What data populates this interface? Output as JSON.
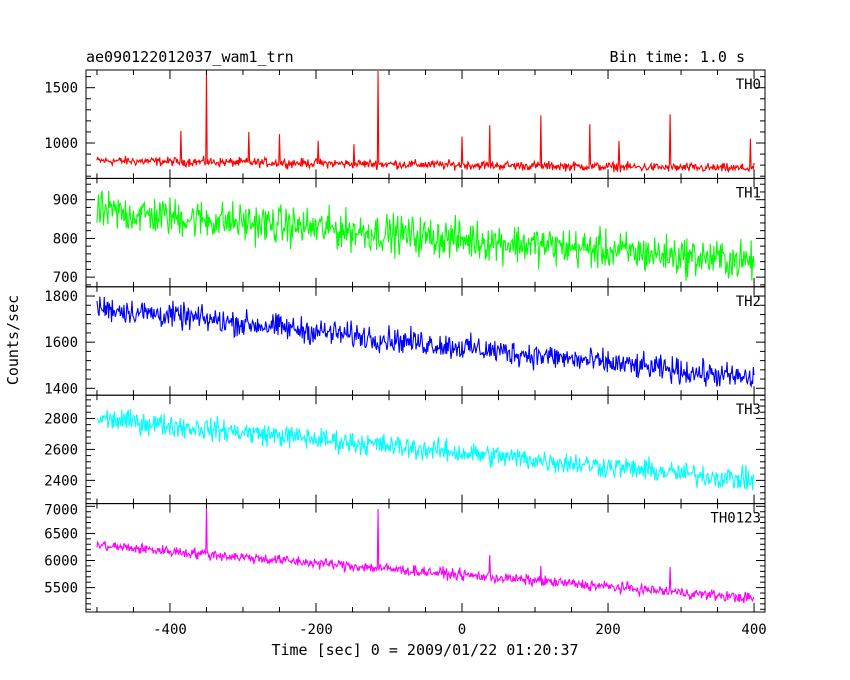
{
  "chart_data": {
    "type": "line",
    "title": "ae090122012037_wam1_trn",
    "subtitle": "Bin time: 1.0 s",
    "xlabel": "Time [sec] 0 = 2009/01/22 01:20:37",
    "ylabel": "Counts/sec",
    "xlim": [
      -515,
      415
    ],
    "xticks": [
      -400,
      -200,
      0,
      200,
      400
    ],
    "x_range_data": [
      -500,
      400
    ],
    "bin_time_s": 1.0,
    "panels": [
      {
        "name": "TH0",
        "color": "#ff0000",
        "ylim": [
          680,
          1660
        ],
        "yticks": [
          1000,
          1500
        ],
        "trend": {
          "x": [
            -500,
            400
          ],
          "y": [
            840,
            770
          ]
        },
        "noise_amplitude": 45,
        "spikes": [
          {
            "x": -350,
            "y": 1650
          },
          {
            "x": -385,
            "y": 1110
          },
          {
            "x": -292,
            "y": 1100
          },
          {
            "x": -250,
            "y": 1080
          },
          {
            "x": -197,
            "y": 1020
          },
          {
            "x": -148,
            "y": 990
          },
          {
            "x": -115,
            "y": 1650
          },
          {
            "x": 0,
            "y": 1060
          },
          {
            "x": 38,
            "y": 1160
          },
          {
            "x": 108,
            "y": 1250
          },
          {
            "x": 175,
            "y": 1170
          },
          {
            "x": 215,
            "y": 1020
          },
          {
            "x": 285,
            "y": 1260
          },
          {
            "x": 395,
            "y": 1040
          }
        ]
      },
      {
        "name": "TH1",
        "color": "#00ff00",
        "ylim": [
          675,
          955
        ],
        "yticks": [
          700,
          800,
          900
        ],
        "trend": {
          "x": [
            -500,
            400
          ],
          "y": [
            870,
            740
          ]
        },
        "noise_amplitude": 55,
        "spikes": []
      },
      {
        "name": "TH2",
        "color": "#0000ff",
        "ylim": [
          1370,
          1840
        ],
        "yticks": [
          1400,
          1600,
          1800
        ],
        "trend": {
          "x": [
            -500,
            400
          ],
          "y": [
            1750,
            1440
          ]
        },
        "noise_amplitude": 60,
        "spikes": []
      },
      {
        "name": "TH3",
        "color": "#00ffff",
        "ylim": [
          2250,
          2950
        ],
        "yticks": [
          2400,
          2600,
          2800
        ],
        "trend": {
          "x": [
            -500,
            400
          ],
          "y": [
            2800,
            2400
          ]
        },
        "noise_amplitude": 80,
        "spikes": []
      },
      {
        "name": "TH0123",
        "color": "#ff00ff",
        "ylim": [
          5050,
          7050
        ],
        "yticks": [
          5500,
          6000,
          6500,
          7000
        ],
        "trend": {
          "x": [
            -500,
            400
          ],
          "y": [
            6280,
            5300
          ]
        },
        "noise_amplitude": 110,
        "spikes": [
          {
            "x": -350,
            "y": 7000
          },
          {
            "x": -115,
            "y": 6950
          },
          {
            "x": 38,
            "y": 6100
          },
          {
            "x": 108,
            "y": 5900
          },
          {
            "x": 285,
            "y": 5880
          }
        ]
      }
    ]
  }
}
